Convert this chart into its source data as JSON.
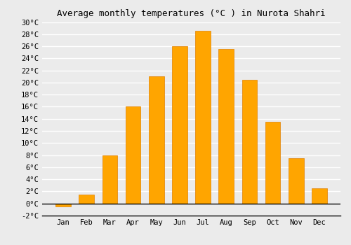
{
  "title": "Average monthly temperatures (°C ) in Nurota Shahri",
  "months": [
    "Jan",
    "Feb",
    "Mar",
    "Apr",
    "May",
    "Jun",
    "Jul",
    "Aug",
    "Sep",
    "Oct",
    "Nov",
    "Dec"
  ],
  "values": [
    -0.5,
    1.5,
    8.0,
    16.0,
    21.0,
    26.0,
    28.5,
    25.5,
    20.5,
    13.5,
    7.5,
    2.5
  ],
  "bar_color": "#FFA500",
  "bar_edge_color": "#E08000",
  "ylim": [
    -2,
    30
  ],
  "yticks": [
    -2,
    0,
    2,
    4,
    6,
    8,
    10,
    12,
    14,
    16,
    18,
    20,
    22,
    24,
    26,
    28,
    30
  ],
  "background_color": "#ebebeb",
  "plot_bg_color": "#ebebeb",
  "grid_color": "#ffffff",
  "title_fontsize": 9,
  "tick_fontsize": 7.5,
  "font_family": "DejaVu Sans Mono"
}
